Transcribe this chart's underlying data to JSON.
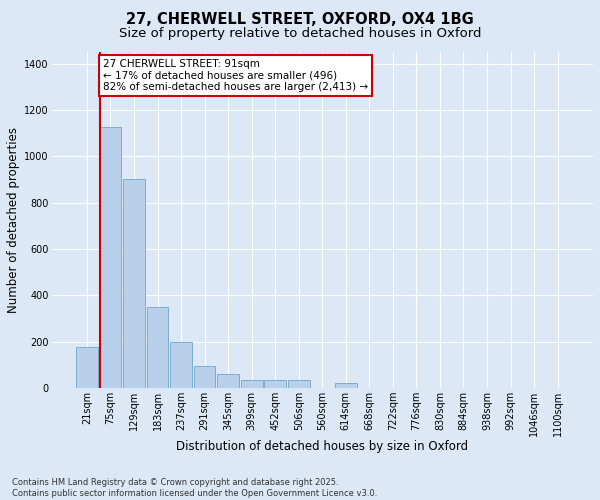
{
  "title_line1": "27, CHERWELL STREET, OXFORD, OX4 1BG",
  "title_line2": "Size of property relative to detached houses in Oxford",
  "xlabel": "Distribution of detached houses by size in Oxford",
  "ylabel": "Number of detached properties",
  "categories": [
    "21sqm",
    "75sqm",
    "129sqm",
    "183sqm",
    "237sqm",
    "291sqm",
    "345sqm",
    "399sqm",
    "452sqm",
    "506sqm",
    "560sqm",
    "614sqm",
    "668sqm",
    "722sqm",
    "776sqm",
    "830sqm",
    "884sqm",
    "938sqm",
    "992sqm",
    "1046sqm",
    "1100sqm"
  ],
  "bar_values": [
    175,
    1125,
    900,
    350,
    200,
    95,
    60,
    35,
    35,
    35,
    0,
    20,
    0,
    0,
    0,
    0,
    0,
    0,
    0,
    0,
    0
  ],
  "bar_color": "#b8d0ea",
  "bar_edge_color": "#7aadd4",
  "vline_color": "#cc0000",
  "annotation_text": "27 CHERWELL STREET: 91sqm\n← 17% of detached houses are smaller (496)\n82% of semi-detached houses are larger (2,413) →",
  "annotation_box_color": "#ffffff",
  "annotation_box_edge_color": "#cc0000",
  "ylim": [
    0,
    1450
  ],
  "yticks": [
    0,
    200,
    400,
    600,
    800,
    1000,
    1200,
    1400
  ],
  "background_color": "#dce8f5",
  "plot_background_color": "#dce8f5",
  "grid_color": "#ffffff",
  "footer_line1": "Contains HM Land Registry data © Crown copyright and database right 2025.",
  "footer_line2": "Contains public sector information licensed under the Open Government Licence v3.0.",
  "title_fontsize": 10.5,
  "subtitle_fontsize": 9.5,
  "label_fontsize": 8.5,
  "tick_fontsize": 7,
  "annotation_fontsize": 7.5,
  "footer_fontsize": 6
}
